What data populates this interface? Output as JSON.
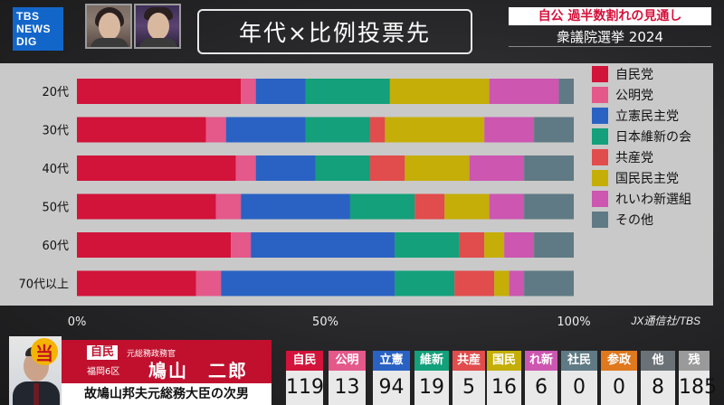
{
  "logo": {
    "line1": "TBS",
    "line2": "NEWS",
    "line3": "DIG"
  },
  "title": "年代×比例投票先",
  "headline": "自公 過半数割れの見通し",
  "subhead": "衆議院選挙 2024",
  "source": "JX通信社/TBS",
  "colors": {
    "自民党": "#d2133a",
    "公明党": "#e4588a",
    "立憲民主党": "#2a62c3",
    "日本維新の会": "#13a07a",
    "共産党": "#e14c4c",
    "国民民主党": "#c4ae07",
    "れいわ新選組": "#cc56b0",
    "その他": "#5f7a84"
  },
  "chart_data": {
    "type": "bar",
    "orientation": "horizontal",
    "stacked": true,
    "categories": [
      "20代",
      "30代",
      "40代",
      "50代",
      "60代",
      "70代以上"
    ],
    "series": [
      {
        "name": "自民党",
        "values": [
          33,
          26,
          32,
          28,
          31,
          24
        ]
      },
      {
        "name": "公明党",
        "values": [
          3,
          4,
          4,
          5,
          4,
          5
        ]
      },
      {
        "name": "立憲民主党",
        "values": [
          10,
          16,
          12,
          22,
          29,
          35
        ]
      },
      {
        "name": "日本維新の会",
        "values": [
          17,
          13,
          11,
          13,
          13,
          12
        ]
      },
      {
        "name": "共産党",
        "values": [
          0,
          3,
          7,
          6,
          5,
          8
        ]
      },
      {
        "name": "国民民主党",
        "values": [
          20,
          20,
          13,
          9,
          4,
          3
        ]
      },
      {
        "name": "れいわ新選組",
        "values": [
          14,
          10,
          11,
          7,
          6,
          3
        ]
      },
      {
        "name": "その他",
        "values": [
          3,
          8,
          10,
          10,
          8,
          10
        ]
      }
    ],
    "xticks": [
      "0%",
      "50%",
      "100%"
    ],
    "xlim": [
      0,
      100
    ],
    "legend_position": "right",
    "grid": false
  },
  "candidate": {
    "win_mark": "当",
    "party": "自民",
    "role": "元総務政務官",
    "district": "福岡6区",
    "name": "鳩山　二郎",
    "description": "故鳩山邦夫元総務大臣の次男"
  },
  "seats": [
    {
      "party": "自民",
      "count": "119",
      "color": "#d2133a"
    },
    {
      "party": "公明",
      "count": "13",
      "color": "#e4588a"
    },
    {
      "party": "立憲",
      "count": "94",
      "color": "#2a62c3"
    },
    {
      "party": "維新",
      "count": "19",
      "color": "#13a07a"
    },
    {
      "party": "共産",
      "count": "5",
      "color": "#e14c4c"
    },
    {
      "party": "国民",
      "count": "16",
      "color": "#c4ae07"
    },
    {
      "party": "れ新",
      "count": "6",
      "color": "#cc56b0"
    },
    {
      "party": "社民",
      "count": "0",
      "color": "#5f7a84"
    },
    {
      "party": "参政",
      "count": "0",
      "color": "#e0781e"
    },
    {
      "party": "他",
      "count": "8",
      "color": "#6b7277"
    },
    {
      "party": "残",
      "count": "185",
      "color": "#9a9a9a"
    }
  ]
}
